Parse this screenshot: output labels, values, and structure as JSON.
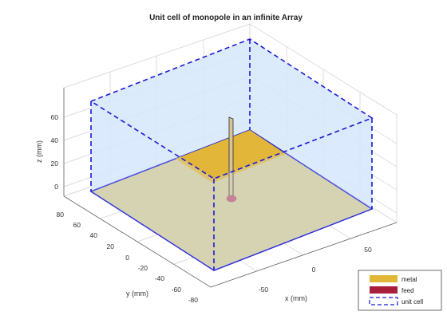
{
  "title": "Unit cell of monopole in an infinite Array",
  "axes": {
    "x": {
      "label": "x (mm)",
      "ticks": [
        "-50",
        "0",
        "50"
      ]
    },
    "y": {
      "label": "y (mm)",
      "ticks": [
        "80",
        "60",
        "40",
        "20",
        "0",
        "-20",
        "-40",
        "-60",
        "-80"
      ]
    },
    "z": {
      "label": "z (mm)",
      "ticks": [
        "60",
        "40",
        "20",
        "0"
      ]
    }
  },
  "legend": {
    "entries": [
      {
        "label": "metal",
        "color": "#e0b835",
        "style": "patch"
      },
      {
        "label": "feed",
        "color": "#a81d3a",
        "style": "patch"
      },
      {
        "label": "unit cell",
        "color": "#1a1ad6",
        "style": "dashed"
      }
    ]
  },
  "colors": {
    "ground_plane": "#d4cc9a",
    "ground_plane_far": "#e2b638",
    "unit_cell_fill": "#d6e8fb",
    "unit_cell_edge": "#1a1ad6",
    "feed_point": "#c2607a",
    "monopole": "#d8c69a"
  }
}
